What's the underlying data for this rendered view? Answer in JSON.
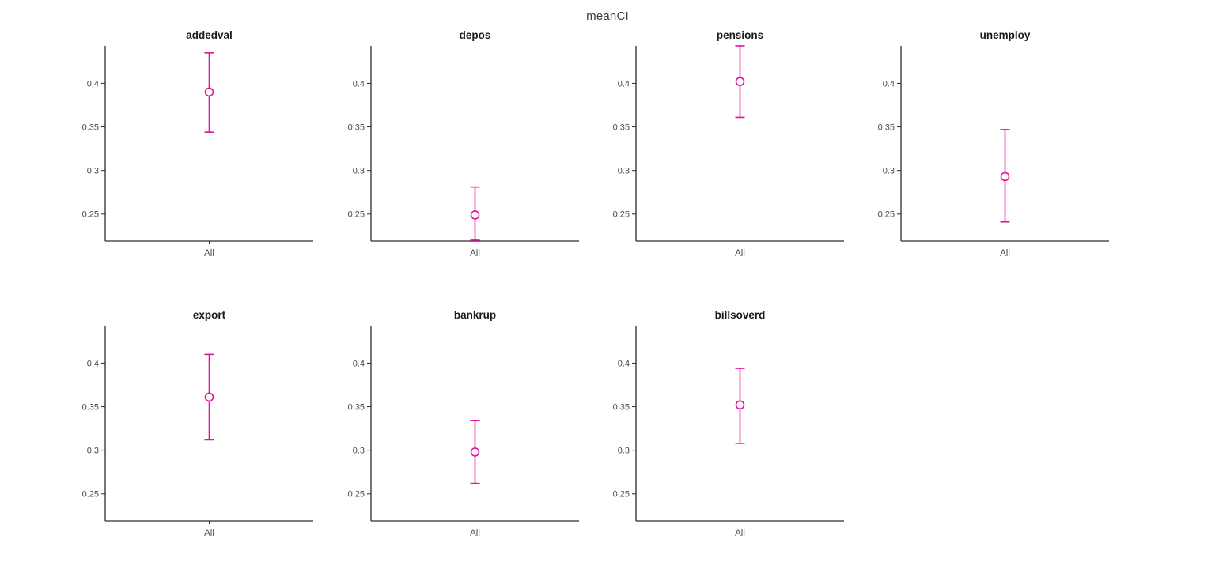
{
  "figure": {
    "title": "meanCI"
  },
  "style": {
    "background": "#ffffff",
    "errorbar_color": "#e2109c",
    "axis_color": "#2b2b2b",
    "tick_label_color": "#4a4a4a",
    "subplot_title_color": "#1a1a1a",
    "figure_title_color": "#3c3c3c"
  },
  "chart_data": [
    {
      "type": "errorbar",
      "title": "addedval",
      "categories": [
        "All"
      ],
      "mean": [
        0.39
      ],
      "ci_lower": [
        0.344
      ],
      "ci_upper": [
        0.435
      ],
      "ylim": [
        0.219,
        0.443
      ],
      "yticks": [
        0.25,
        0.3,
        0.35,
        0.4
      ],
      "ytick_labels": [
        "0.25",
        "0.3",
        "0.35",
        "0.4"
      ],
      "xlabel": "",
      "ylabel": "",
      "grid": false
    },
    {
      "type": "errorbar",
      "title": "depos",
      "categories": [
        "All"
      ],
      "mean": [
        0.249
      ],
      "ci_lower": [
        0.22
      ],
      "ci_upper": [
        0.281
      ],
      "ylim": [
        0.219,
        0.443
      ],
      "yticks": [
        0.25,
        0.3,
        0.35,
        0.4
      ],
      "ytick_labels": [
        "0.25",
        "0.3",
        "0.35",
        "0.4"
      ],
      "xlabel": "",
      "ylabel": "",
      "grid": false
    },
    {
      "type": "errorbar",
      "title": "pensions",
      "categories": [
        "All"
      ],
      "mean": [
        0.402
      ],
      "ci_lower": [
        0.361
      ],
      "ci_upper": [
        0.443
      ],
      "ylim": [
        0.219,
        0.443
      ],
      "yticks": [
        0.25,
        0.3,
        0.35,
        0.4
      ],
      "ytick_labels": [
        "0.25",
        "0.3",
        "0.35",
        "0.4"
      ],
      "xlabel": "",
      "ylabel": "",
      "grid": false
    },
    {
      "type": "errorbar",
      "title": "unemploy",
      "categories": [
        "All"
      ],
      "mean": [
        0.293
      ],
      "ci_lower": [
        0.241
      ],
      "ci_upper": [
        0.347
      ],
      "ylim": [
        0.219,
        0.443
      ],
      "yticks": [
        0.25,
        0.3,
        0.35,
        0.4
      ],
      "ytick_labels": [
        "0.25",
        "0.3",
        "0.35",
        "0.4"
      ],
      "xlabel": "",
      "ylabel": "",
      "grid": false
    },
    {
      "type": "errorbar",
      "title": "export",
      "categories": [
        "All"
      ],
      "mean": [
        0.361
      ],
      "ci_lower": [
        0.312
      ],
      "ci_upper": [
        0.41
      ],
      "ylim": [
        0.219,
        0.443
      ],
      "yticks": [
        0.25,
        0.3,
        0.35,
        0.4
      ],
      "ytick_labels": [
        "0.25",
        "0.3",
        "0.35",
        "0.4"
      ],
      "xlabel": "",
      "ylabel": "",
      "grid": false
    },
    {
      "type": "errorbar",
      "title": "bankrup",
      "categories": [
        "All"
      ],
      "mean": [
        0.298
      ],
      "ci_lower": [
        0.262
      ],
      "ci_upper": [
        0.334
      ],
      "ylim": [
        0.219,
        0.443
      ],
      "yticks": [
        0.25,
        0.3,
        0.35,
        0.4
      ],
      "ytick_labels": [
        "0.25",
        "0.3",
        "0.35",
        "0.4"
      ],
      "xlabel": "",
      "ylabel": "",
      "grid": false
    },
    {
      "type": "errorbar",
      "title": "billsoverd",
      "categories": [
        "All"
      ],
      "mean": [
        0.352
      ],
      "ci_lower": [
        0.308
      ],
      "ci_upper": [
        0.394
      ],
      "ylim": [
        0.219,
        0.443
      ],
      "yticks": [
        0.25,
        0.3,
        0.35,
        0.4
      ],
      "ytick_labels": [
        "0.25",
        "0.3",
        "0.35",
        "0.4"
      ],
      "xlabel": "",
      "ylabel": "",
      "grid": false
    }
  ]
}
